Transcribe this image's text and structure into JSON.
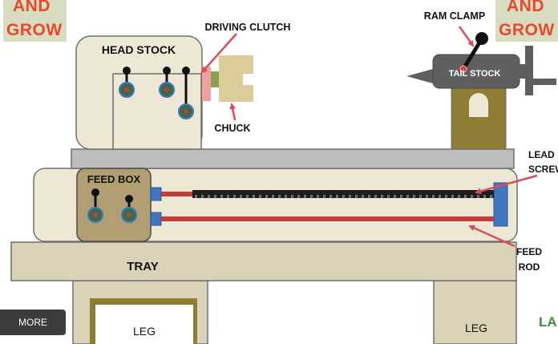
{
  "brand": {
    "line1": "AND",
    "line2": "GROW",
    "color": "#e8492c"
  },
  "labels": {
    "head_stock": "HEAD STOCK",
    "driving_clutch": "DRIVING CLUTCH",
    "chuck": "CHUCK",
    "ram_clamp": "RAM CLAMP",
    "tail_stock": "TAIL STOCK",
    "feed_box": "FEED BOX",
    "lead": "LEAD",
    "screw": "SCREW",
    "feed": "FEED",
    "rod": "ROD",
    "tray": "TRAY",
    "leg_left": "LEG",
    "leg_right": "LEG"
  },
  "overlay": {
    "more_videos": "MORE VIDEOS",
    "watermark": "LA"
  },
  "colors": {
    "machine_body": "#ede8d3",
    "outline": "#6f6f6f",
    "bed": "#bdbdbd",
    "tray": "#dad3b7",
    "feed_box": "#b19e72",
    "tail_support": "#8e7d35",
    "tail_body": "#5f5f5f",
    "shaft": "#c13c3c",
    "screw_bar": "#1e1e1e",
    "bracket": "#3f77c0",
    "arrow": "#d6505a",
    "chuck": "#dccc99",
    "clutch_pink": "#f0a0a0",
    "clutch_green": "#8aa04d"
  }
}
